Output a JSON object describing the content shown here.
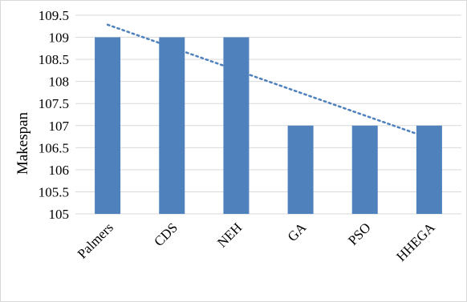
{
  "chart_data": {
    "type": "bar",
    "categories": [
      "Palmers",
      "CDS",
      "NEH",
      "GA",
      "PSO",
      "HHEGA"
    ],
    "values": [
      109,
      109,
      109,
      107,
      107,
      107
    ],
    "title": "",
    "xlabel": "",
    "ylabel": "Makespan",
    "ylim": [
      105,
      109.5
    ],
    "yticks": [
      "105",
      "105.5",
      "106",
      "106.5",
      "107",
      "107.5",
      "108",
      "108.5",
      "109",
      "109.5"
    ],
    "grid": true,
    "trendline": {
      "type": "linear",
      "style": "dotted"
    },
    "colors": {
      "bar": "#4F81BD",
      "trendline": "#4F81BD",
      "grid": "#d9d9d9"
    }
  }
}
